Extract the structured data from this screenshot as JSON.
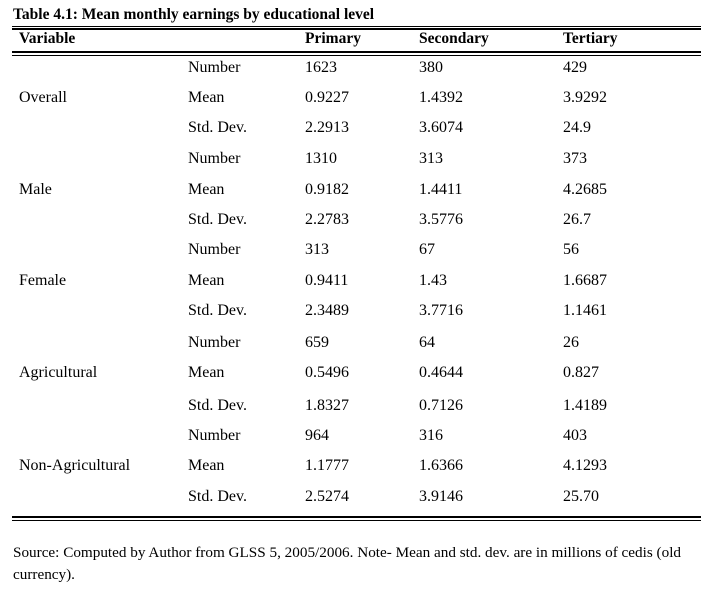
{
  "caption": "Table 4.1: Mean monthly earnings by educational level",
  "headers": {
    "variable": "Variable",
    "primary": "Primary",
    "secondary": "Secondary",
    "tertiary": "Tertiary"
  },
  "groups": [
    {
      "label": "Overall",
      "rows": [
        {
          "stat": "Number",
          "primary": "1623",
          "secondary": "380",
          "tertiary": "429"
        },
        {
          "stat": "Mean",
          "primary": "0.9227",
          "secondary": "1.4392",
          "tertiary": "3.9292"
        },
        {
          "stat": "Std. Dev.",
          "primary": "2.2913",
          "secondary": "3.6074",
          "tertiary": "24.9"
        }
      ]
    },
    {
      "label": "Male",
      "rows": [
        {
          "stat": "Number",
          "primary": "1310",
          "secondary": "313",
          "tertiary": "373"
        },
        {
          "stat": "Mean",
          "primary": "0.9182",
          "secondary": "1.4411",
          "tertiary": "4.2685"
        },
        {
          "stat": "Std. Dev.",
          "primary": "2.2783",
          "secondary": "3.5776",
          "tertiary": "26.7"
        }
      ]
    },
    {
      "label": "Female",
      "rows": [
        {
          "stat": "Number",
          "primary": "313",
          "secondary": "67",
          "tertiary": "56"
        },
        {
          "stat": "Mean",
          "primary": "0.9411",
          "secondary": "1.43",
          "tertiary": "1.6687"
        },
        {
          "stat": "Std. Dev.",
          "primary": "2.3489",
          "secondary": "3.7716",
          "tertiary": "1.1461"
        }
      ]
    },
    {
      "label": "Agricultural",
      "rows": [
        {
          "stat": "Number",
          "primary": "659",
          "secondary": "64",
          "tertiary": "26"
        },
        {
          "stat": "Mean",
          "primary": "0.5496",
          "secondary": "0.4644",
          "tertiary": "0.827"
        },
        {
          "stat": "Std. Dev.",
          "primary": "1.8327",
          "secondary": "0.7126",
          "tertiary": "1.4189"
        }
      ]
    },
    {
      "label": "Non-Agricultural",
      "rows": [
        {
          "stat": "Number",
          "primary": "964",
          "secondary": "316",
          "tertiary": "403"
        },
        {
          "stat": "Mean",
          "primary": "1.1777",
          "secondary": "1.6366",
          "tertiary": "4.1293"
        },
        {
          "stat": "Std. Dev.",
          "primary": "2.5274",
          "secondary": "3.9146",
          "tertiary": "25.70"
        }
      ]
    }
  ],
  "source_note": "Source: Computed by Author from GLSS 5, 2005/2006. Note- Mean and std. dev. are in millions of cedis (old currency)."
}
